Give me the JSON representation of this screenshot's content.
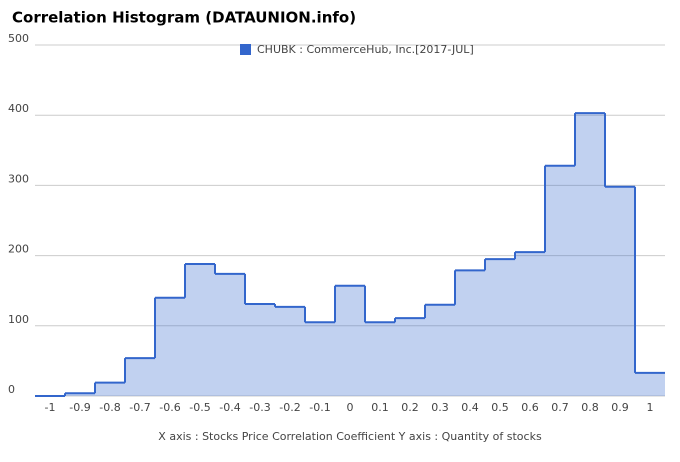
{
  "chart_data": {
    "type": "step-area",
    "title": "Correlation Histogram (DATAUNION.info)",
    "xlabel": "X axis : Stocks Price Correlation Coefficient  Y axis : Quantity of stocks",
    "series": [
      {
        "name": "CHUBK : CommerceHub, Inc.[2017-JUL]",
        "color": "#3366cc",
        "x": [
          -1,
          -0.9,
          -0.8,
          -0.7,
          -0.6,
          -0.5,
          -0.4,
          -0.3,
          -0.2,
          -0.1,
          0,
          0.1,
          0.2,
          0.3,
          0.4,
          0.5,
          0.6,
          0.7,
          0.8,
          0.9,
          1
        ],
        "values": [
          0,
          4,
          19,
          54,
          140,
          188,
          174,
          131,
          127,
          105,
          157,
          105,
          111,
          130,
          179,
          195,
          205,
          328,
          403,
          298,
          33
        ]
      }
    ],
    "bin_width": 0.1,
    "xlim": [
      -1.05,
      1.05
    ],
    "xticks": [
      -1,
      -0.9,
      -0.8,
      -0.7,
      -0.6,
      -0.5,
      -0.4,
      -0.3,
      -0.2,
      -0.1,
      0,
      0.1,
      0.2,
      0.3,
      0.4,
      0.5,
      0.6,
      0.7,
      0.8,
      0.9,
      1
    ],
    "ylim": [
      0,
      500
    ],
    "yticks": [
      0,
      100,
      200,
      300,
      400,
      500
    ],
    "grid": true
  }
}
